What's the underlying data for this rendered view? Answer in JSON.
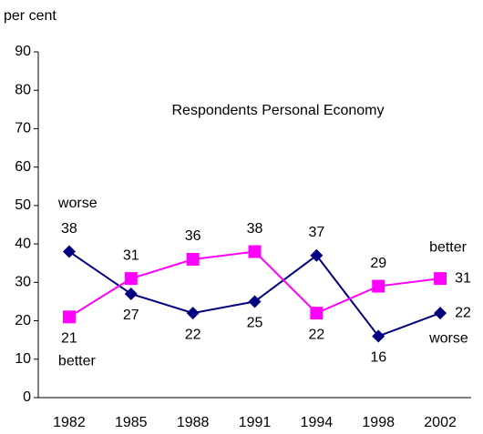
{
  "chart_data": {
    "type": "line",
    "title": "Respondents Personal Economy",
    "y_label": "per cent",
    "categories": [
      "1982",
      "1985",
      "1988",
      "1991",
      "1994",
      "1998",
      "2002"
    ],
    "series": [
      {
        "name": "worse",
        "color": "#000080",
        "marker": "diamond",
        "values": [
          38,
          27,
          22,
          25,
          37,
          16,
          22
        ]
      },
      {
        "name": "better",
        "color": "#ff00ff",
        "marker": "square",
        "values": [
          21,
          31,
          36,
          38,
          22,
          29,
          31
        ]
      }
    ],
    "ylim": [
      0,
      90
    ],
    "yticks": [
      0,
      10,
      20,
      30,
      40,
      50,
      60,
      70,
      80,
      90
    ],
    "grid": false
  }
}
